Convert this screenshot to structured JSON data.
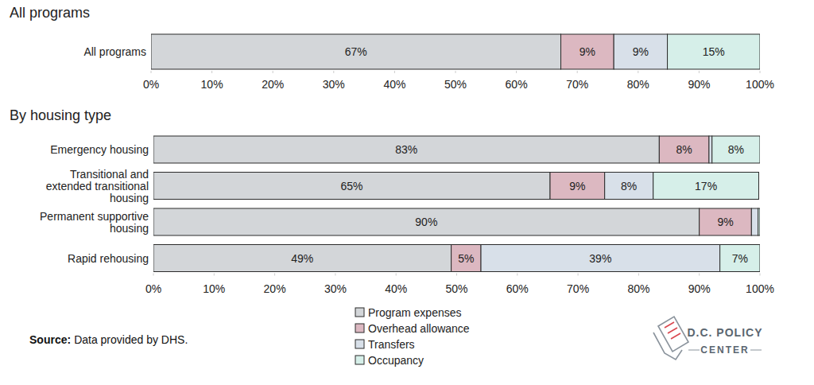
{
  "chart_data": [
    {
      "type": "bar",
      "title": "All programs",
      "orientation": "horizontal",
      "stacked": true,
      "data_labels": true,
      "categories": [
        "All programs"
      ],
      "series": [
        {
          "color": "#d3d6d9",
          "values": [
            67.3
          ],
          "value_labels": [
            "67%"
          ]
        },
        {
          "color": "#dcb8c1",
          "values": [
            8.7
          ],
          "value_labels": [
            "9%"
          ]
        },
        {
          "color": "#d8e0e9",
          "values": [
            8.8
          ],
          "value_labels": [
            "9%"
          ]
        },
        {
          "color": "#d6efe9",
          "values": [
            15.2
          ],
          "value_labels": [
            "15%"
          ]
        }
      ],
      "xlim": [
        0,
        100
      ],
      "xticks": [
        {
          "value": 0,
          "label": "0%"
        },
        {
          "value": 10,
          "label": "10%"
        },
        {
          "value": 20,
          "label": "20%"
        },
        {
          "value": 30,
          "label": "30%"
        },
        {
          "value": 40,
          "label": "40%"
        },
        {
          "value": 50,
          "label": "50%"
        },
        {
          "value": 60,
          "label": "60%"
        },
        {
          "value": 70,
          "label": "70%"
        },
        {
          "value": 80,
          "label": "80%"
        },
        {
          "value": 90,
          "label": "90%"
        },
        {
          "value": 100,
          "label": "100%"
        }
      ],
      "grid": false
    },
    {
      "type": "bar",
      "title": "By housing type",
      "orientation": "horizontal",
      "stacked": true,
      "data_labels": true,
      "legend": "bottom",
      "categories": [
        "Emergency housing",
        "Transitional and\nextended transitional\nhousing",
        "Permanent supportive\nhousing",
        "Rapid rehousing"
      ],
      "series": [
        {
          "name": "Program expenses",
          "color": "#d3d6d9",
          "values": [
            83.4,
            65.4,
            90.0,
            49.1
          ],
          "value_labels": [
            "83%",
            "65%",
            "90%",
            "49%"
          ]
        },
        {
          "name": "Overhead allowance",
          "color": "#dcb8c1",
          "values": [
            8.2,
            9.0,
            8.6,
            4.9
          ],
          "value_labels": [
            "8%",
            "9%",
            "9%",
            "5%"
          ]
        },
        {
          "name": "Transfers",
          "color": "#d8e0e9",
          "values": [
            0.5,
            8.0,
            1.1,
            39.4
          ],
          "value_labels": [
            null,
            "8%",
            null,
            "39%"
          ]
        },
        {
          "name": "Occupancy",
          "color": "#d6efe9",
          "values": [
            7.9,
            17.4,
            0.3,
            6.6
          ],
          "value_labels": [
            "8%",
            "17%",
            null,
            "7%"
          ]
        }
      ],
      "xlim": [
        0,
        100
      ],
      "xticks": [
        {
          "value": 0,
          "label": "0%"
        },
        {
          "value": 10,
          "label": "10%"
        },
        {
          "value": 20,
          "label": "20%"
        },
        {
          "value": 30,
          "label": "30%"
        },
        {
          "value": 40,
          "label": "40%"
        },
        {
          "value": 50,
          "label": "50%"
        },
        {
          "value": 60,
          "label": "60%"
        },
        {
          "value": 70,
          "label": "70%"
        },
        {
          "value": 80,
          "label": "80%"
        },
        {
          "value": 90,
          "label": "90%"
        },
        {
          "value": 100,
          "label": "100%"
        }
      ],
      "grid": false
    }
  ],
  "footer": {
    "source_label": "Source:",
    "source_text": "Data provided by DHS.",
    "logo_lines": [
      "D.C. POLICY",
      "CENTER"
    ]
  }
}
